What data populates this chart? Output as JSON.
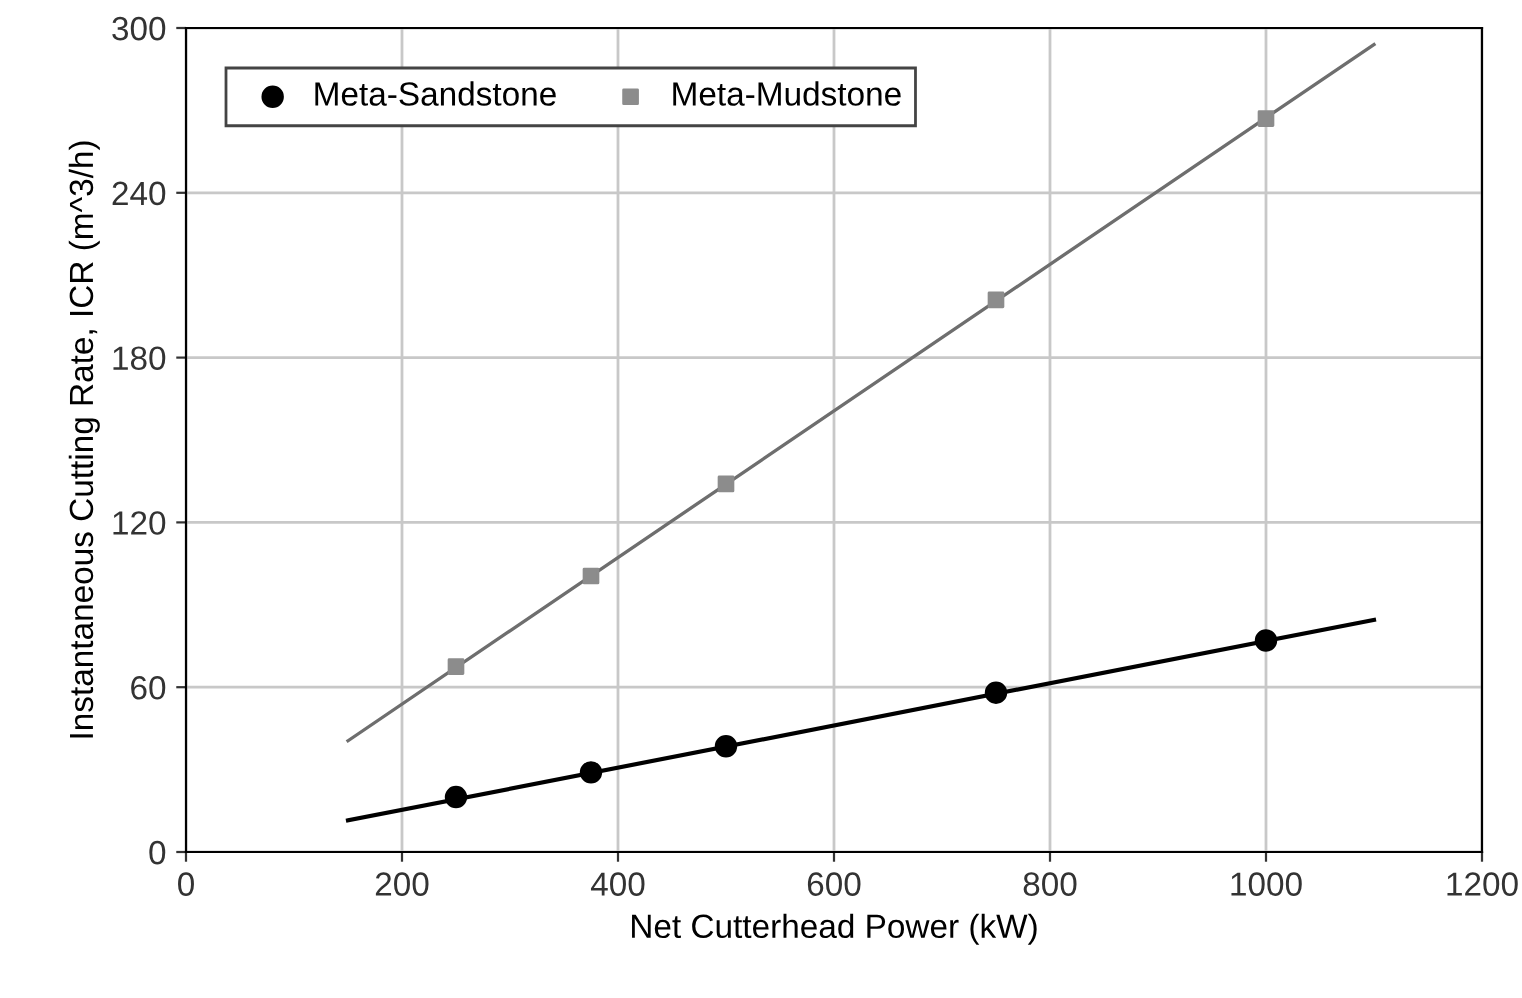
{
  "chart_data": {
    "type": "scatter",
    "xlabel": "Net Cutterhead Power (kW)",
    "ylabel": "Instantaneous Cutting Rate, ICR (m^3/h)",
    "xlim": [
      0,
      1200
    ],
    "xticks": [
      0,
      200,
      400,
      600,
      800,
      1000,
      1200
    ],
    "ylim": [
      0,
      300
    ],
    "yticks": [
      0,
      60,
      120,
      180,
      240,
      300
    ],
    "grid": true,
    "legend": "top left",
    "series": [
      {
        "name": "Meta-Sandstone",
        "color": "#000000",
        "marker": "circle",
        "x": [
          250,
          375,
          500,
          750,
          1000
        ],
        "values": [
          20,
          29,
          38.5,
          58,
          77
        ]
      },
      {
        "name": "Meta-Mudstone",
        "color": "#8c8c8c",
        "marker": "square",
        "x": [
          250,
          375,
          500,
          750,
          1000
        ],
        "values": [
          67.5,
          100.5,
          134,
          201,
          267
        ]
      },
      {
        "type": "line",
        "color": "#000000",
        "marker": "none",
        "x": [
          150,
          1100
        ],
        "values": [
          11.5,
          84.5
        ]
      },
      {
        "type": "line",
        "color": "#6e6e6e",
        "marker": "none",
        "x": [
          150,
          1100
        ],
        "values": [
          40.5,
          294
        ]
      }
    ]
  }
}
